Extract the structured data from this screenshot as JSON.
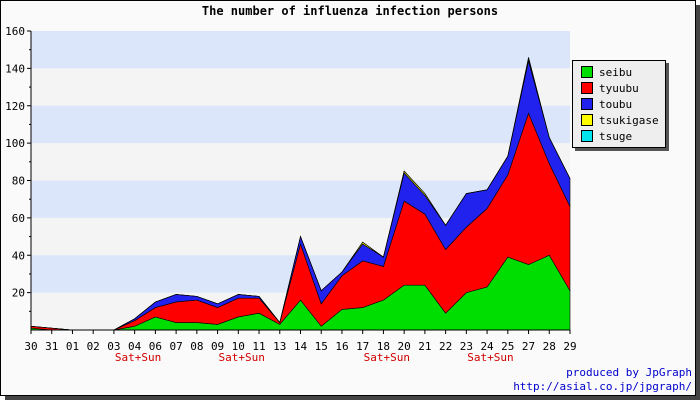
{
  "chart_data": {
    "type": "area",
    "title": "The number of influenza infection persons",
    "categories": [
      "30",
      "31",
      "01",
      "02",
      "03",
      "04",
      "06",
      "07",
      "08",
      "09",
      "10",
      "11",
      "13",
      "14",
      "15",
      "16",
      "17",
      "18",
      "20",
      "21",
      "22",
      "23",
      "24",
      "25",
      "27",
      "28",
      "29"
    ],
    "weekend_label": "Sat+Sun",
    "weekend_indices": [
      5,
      10,
      17,
      22
    ],
    "stacked": true,
    "ylim": [
      0,
      160
    ],
    "yticks": [
      20,
      40,
      60,
      80,
      100,
      120,
      140,
      160
    ],
    "grid": "horizontal bands",
    "legend_position": "right",
    "series": [
      {
        "name": "seibu",
        "color": "#00dd00",
        "values": [
          1,
          0,
          0,
          0,
          0,
          2,
          7,
          4,
          4,
          3,
          7,
          9,
          3,
          16,
          2,
          11,
          12,
          16,
          24,
          24,
          9,
          20,
          23,
          39,
          35,
          40,
          21
        ]
      },
      {
        "name": "tyuubu",
        "color": "#ff0000",
        "values": [
          1,
          1,
          0,
          0,
          0,
          3,
          5,
          11,
          12,
          9,
          10,
          8,
          1,
          30,
          12,
          18,
          25,
          18,
          45,
          38,
          34,
          35,
          42,
          44,
          81,
          49,
          45
        ]
      },
      {
        "name": "toubu",
        "color": "#2222ee",
        "values": [
          0,
          0,
          0,
          0,
          0,
          1,
          3,
          4,
          2,
          2,
          2,
          1,
          0,
          4,
          7,
          2,
          9,
          5,
          15,
          10,
          13,
          18,
          10,
          10,
          28,
          14,
          15
        ]
      },
      {
        "name": "tsukigase",
        "color": "#ffff00",
        "values": [
          0,
          0,
          0,
          0,
          0,
          0,
          0,
          0,
          0,
          0,
          0,
          0,
          0,
          0,
          0,
          0,
          1,
          0,
          1,
          1,
          0,
          0,
          0,
          0,
          1,
          0,
          0
        ]
      },
      {
        "name": "tsuge",
        "color": "#00e5ee",
        "values": [
          0,
          0,
          0,
          0,
          0,
          0,
          0,
          0,
          0,
          0,
          0,
          0,
          0,
          0,
          0,
          0,
          0,
          0,
          0,
          0,
          0,
          0,
          0,
          0,
          1,
          0,
          0
        ]
      }
    ]
  },
  "credit": {
    "line1": "produced by JpGraph",
    "line2": "http://asial.co.jp/jpgraph/"
  }
}
